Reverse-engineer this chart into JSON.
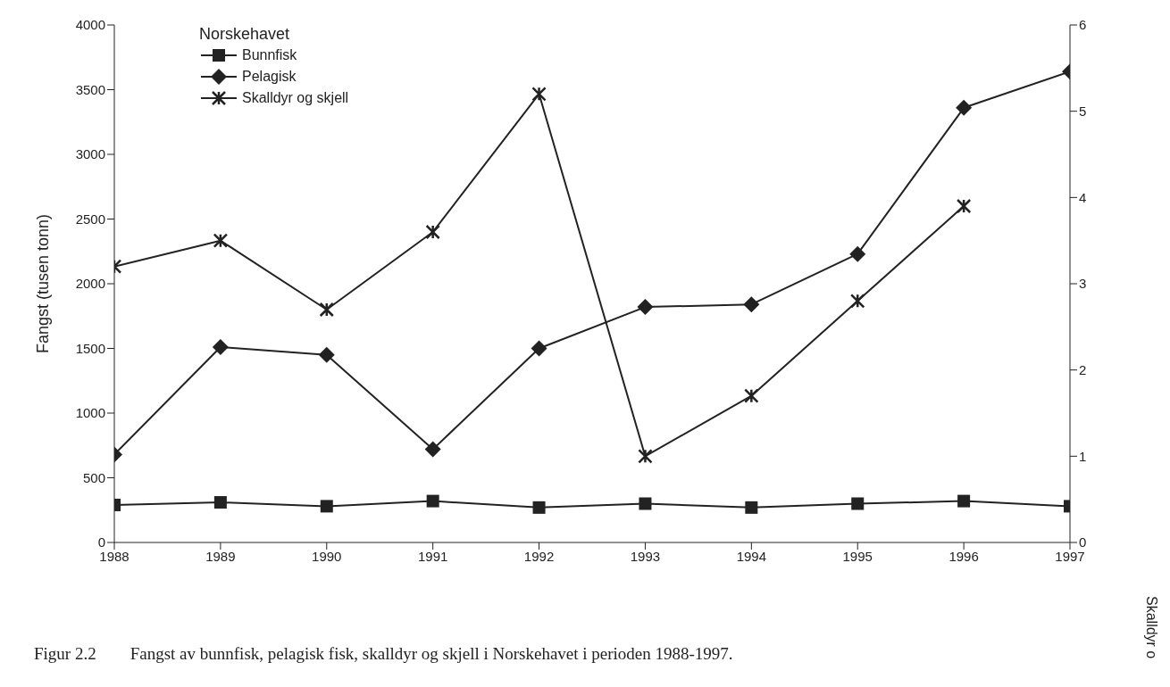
{
  "chart_data": {
    "type": "line",
    "ylabel": "Fangst (tusen tonn)",
    "y2label": "Skalldyr o",
    "legend_title": "Norskehavet",
    "legend": "top left",
    "grid": false,
    "line_style": "solid",
    "x": [
      1988,
      1989,
      1990,
      1991,
      1992,
      1993,
      1994,
      1995,
      1996,
      1997
    ],
    "xlim": [
      1988,
      1997
    ],
    "xticks": [
      1988,
      1989,
      1990,
      1991,
      1992,
      1993,
      1994,
      1995,
      1996,
      1997
    ],
    "ylim": [
      0,
      4000
    ],
    "yticks": [
      0,
      500,
      1000,
      1500,
      2000,
      2500,
      3000,
      3500,
      4000
    ],
    "y2lim": [
      0,
      6
    ],
    "y2ticks": [
      0,
      1,
      2,
      3,
      4,
      5,
      6
    ],
    "series": [
      {
        "name": "Bunnfisk",
        "color": "#222222",
        "marker": "square",
        "values": [
          290,
          310,
          280,
          320,
          270,
          300,
          270,
          300,
          320,
          280
        ]
      },
      {
        "name": "Pelagisk",
        "color": "#222222",
        "marker": "diamond",
        "values": [
          680,
          1510,
          1450,
          720,
          1500,
          1820,
          1840,
          2230,
          3360,
          3640
        ]
      },
      {
        "name": "Skalldyr og skjell",
        "color": "#222222",
        "marker": "cross",
        "axis": "y2",
        "values": [
          3.2,
          3.5,
          2.7,
          3.6,
          5.2,
          1.0,
          1.7,
          2.8,
          3.9,
          null
        ]
      }
    ],
    "annotations": [
      "Figur 2.2  Fangst av bunnfisk, pelagisk fisk, skalldyr og skjell i Norskehavet i perioden 1988-1997."
    ]
  }
}
